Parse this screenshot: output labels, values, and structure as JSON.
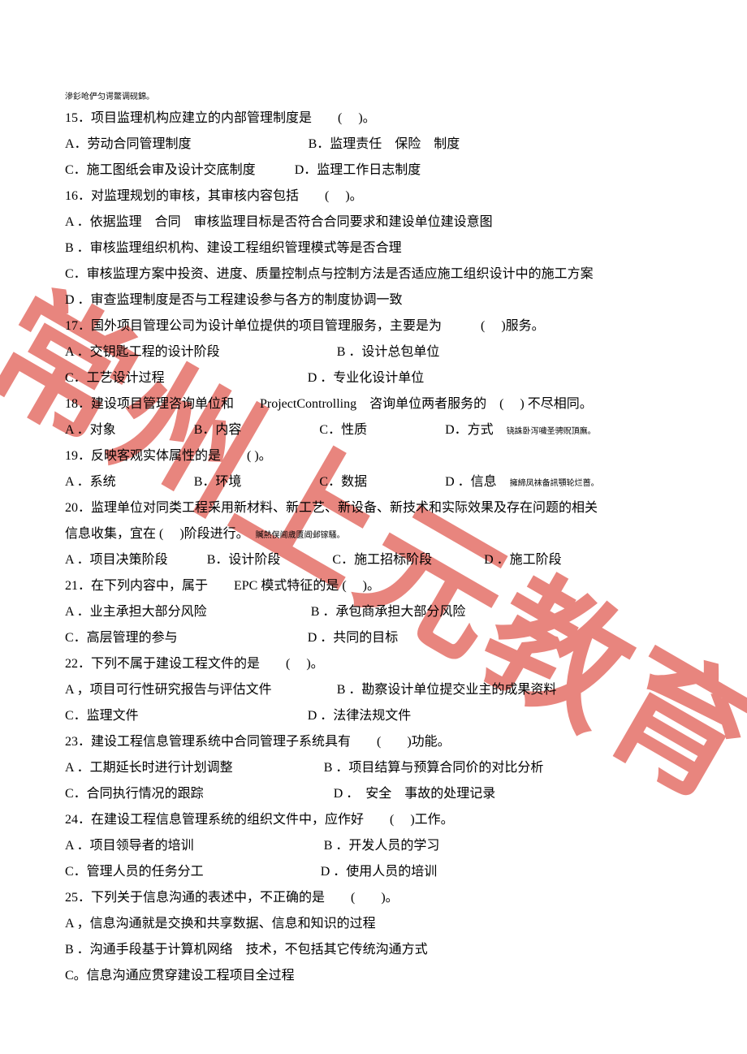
{
  "watermark_text": "常州上元教育",
  "watermark_color": "#db3b30",
  "tiny_header": "滲釤呛俨匀谔鱉调砚錦。",
  "q15": {
    "stem": "15．项目监理机构应建立的内部管理制度是　　(　 )。",
    "a": "A．劳动合同管理制度",
    "b": "B．监理责任　保险　制度",
    "c": "C．施工图纸会审及设计交底制度",
    "d": "D．监理工作日志制度"
  },
  "q16": {
    "stem": "16．对监理规划的审核，其审核内容包括　　(　 )。",
    "a": "A ．依据监理　合同　审核监理目标是否符合合同要求和建设单位建设意图",
    "b": "B ．审核监理组织机构、建设工程组织管理模式等是否合理",
    "c": "C．审核监理方案中投资、进度、质量控制点与控制方法是否适应施工组织设计中的施工方案",
    "d": "D ．审查监理制度是否与工程建设参与各方的制度协调一致"
  },
  "q17": {
    "stem": "17．国外项目管理公司为设计单位提供的项目管理服务，主要是为　　　(　 )服务。",
    "a": "A ．交钥匙工程的设计阶段",
    "b": "B ．设计总包单位",
    "c": "C．工艺设计过程",
    "d": "D ．专业化设计单位"
  },
  "q18": {
    "stem": "18．建设项目管理咨询单位和　　ProjectControlling　咨询单位两者服务的　(　 ) 不尽相同。",
    "a": "A ．对象",
    "b": "B．内容",
    "c": "C．性质",
    "d": "D．方式",
    "tiny": "铙誅卧泻噦圣骋贶頂廡。"
  },
  "q19": {
    "stem": "19．反映客观实体属性的是　　( )。",
    "a": "A ．系统",
    "b": "B．环境",
    "c": "C．数据",
    "d": "D ．信息",
    "tiny": "擁締凤袜备訊顎轮烂蔷。"
  },
  "q20": {
    "stem1": "20．监理单位对同类工程采用新材料、新工艺、新设备、新技术和实际效果及存在问题的相关",
    "stem2": "信息收集，宜在 (　 )阶段进行。",
    "tiny": "贓熱俣阃歲匱阊邺镓騷。",
    "a": "A ．项目决策阶段",
    "b": "B．设计阶段",
    "c": "C．施工招标阶段",
    "d": "D ．施工阶段"
  },
  "q21": {
    "stem": "21．在下列内容中，属于　　EPC 模式特征的是 (　 )。",
    "a": "A ．业主承担大部分风险",
    "b": "B ．承包商承担大部分风险",
    "c": "C．高层管理的参与",
    "d": "D ．共同的目标"
  },
  "q22": {
    "stem": "22．下列不属于建设工程文件的是　　(　 )。",
    "a": "A ，项目可行性研究报告与评估文件",
    "b": "B ．勘察设计单位提交业主的成果资料",
    "c": "C．监理文件",
    "d": "D ．法律法规文件"
  },
  "q23": {
    "stem": "23．建设工程信息管理系统中合同管理子系统具有　　(　　)功能。",
    "a": "A ．工期延长时进行计划调整",
    "b": "B ．项目结算与预算合同价的对比分析",
    "c": "C．合同执行情况的跟踪",
    "d": "D ．　安全　事故的处理记录"
  },
  "q24": {
    "stem": "24．在建设工程信息管理系统的组织文件中，应作好　　(　 )工作。",
    "a": "A ．项目领导者的培训",
    "b": "B ．开发人员的学习",
    "c": "C．管理人员的任务分工",
    "d": "D ．使用人员的培训"
  },
  "q25": {
    "stem": "25．下列关于信息沟通的表述中，不正确的是　　(　　)。",
    "a": "A ，信息沟通就是交换和共享数据、信息和知识的过程",
    "b": "B ．沟通手段基于计算机网络　技术，不包括其它传统沟通方式",
    "c": "C。信息沟通应贯穿建设工程项目全过程"
  }
}
